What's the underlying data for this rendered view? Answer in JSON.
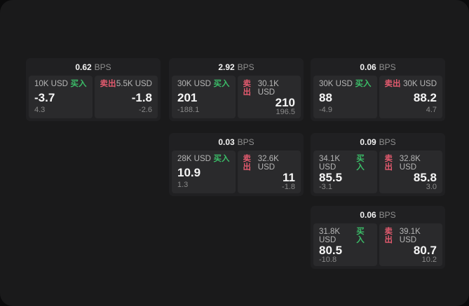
{
  "labels": {
    "bps_unit": "BPS",
    "buy": "买入",
    "sell": "卖出"
  },
  "colors": {
    "buy_accent": "#3bbd68",
    "sell_accent": "#e25a6e",
    "panel_bg": "#1a1a1b",
    "card_bg": "#202022",
    "subpanel_bg": "#2a2a2c"
  },
  "cards": [
    {
      "bps": "0.62",
      "buy": {
        "notional": "10K USD",
        "price": "-3.7",
        "delta": "4.3"
      },
      "sell": {
        "notional": "5.5K USD",
        "price": "-1.8",
        "delta": "-2.6"
      }
    },
    {
      "bps": "2.92",
      "buy": {
        "notional": "30K USD",
        "price": "201",
        "delta": "-188.1"
      },
      "sell": {
        "notional": "30.1K USD",
        "price": "210",
        "delta": "196.5"
      }
    },
    {
      "bps": "0.06",
      "buy": {
        "notional": "30K USD",
        "price": "88",
        "delta": "-4.9"
      },
      "sell": {
        "notional": "30K USD",
        "price": "88.2",
        "delta": "4.7"
      }
    },
    {
      "bps": "0.03",
      "buy": {
        "notional": "28K USD",
        "price": "10.9",
        "delta": "1.3"
      },
      "sell": {
        "notional": "32.6K USD",
        "price": "11",
        "delta": "-1.8"
      }
    },
    {
      "bps": "0.09",
      "buy": {
        "notional": "34.1K USD",
        "price": "85.5",
        "delta": "-3.1"
      },
      "sell": {
        "notional": "32.8K USD",
        "price": "85.8",
        "delta": "3.0"
      }
    },
    {
      "bps": "0.06",
      "buy": {
        "notional": "31.8K USD",
        "price": "80.5",
        "delta": "-10.8"
      },
      "sell": {
        "notional": "39.1K USD",
        "price": "80.7",
        "delta": "10.2"
      }
    }
  ]
}
